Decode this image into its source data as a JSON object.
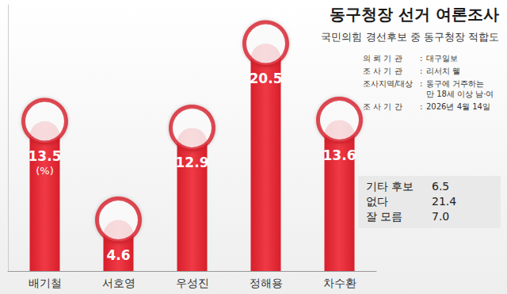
{
  "chart_data": {
    "type": "bar",
    "title": "동구청장 선거 여론조사",
    "subtitle": "국민의힘 경선후보 중 동구청장 적합도",
    "categories": [
      "배기철",
      "서호영",
      "우성진",
      "정해용",
      "차수환"
    ],
    "values": [
      13.5,
      4.6,
      12.9,
      20.5,
      13.6
    ],
    "color": "#d71f2b",
    "ylim": [
      0,
      24
    ],
    "grid": false,
    "tick_labels": false,
    "data_labels": true,
    "annotations": [
      {
        "category": "배기철",
        "text": "(%)"
      }
    ],
    "info": {
      "separator": ":",
      "rows": [
        {
          "label": "의 뢰 기 관",
          "value": [
            "대구일보"
          ]
        },
        {
          "label": "조 사 기 관",
          "value": [
            "리서치 웰"
          ]
        },
        {
          "label": "조사지역/대상",
          "value": [
            "동구에 거주하는",
            "만 18세 이상 남·여"
          ]
        },
        {
          "label": "조 사 기 간",
          "value": [
            "2026년 4월 14일"
          ]
        }
      ]
    },
    "other_responses": {
      "labels": [
        "기타 후보",
        "없다",
        "잘 모름"
      ],
      "values": [
        6.5,
        21.4,
        7.0
      ],
      "value_labels": [
        "6.5",
        "21.4",
        "7.0"
      ]
    }
  }
}
